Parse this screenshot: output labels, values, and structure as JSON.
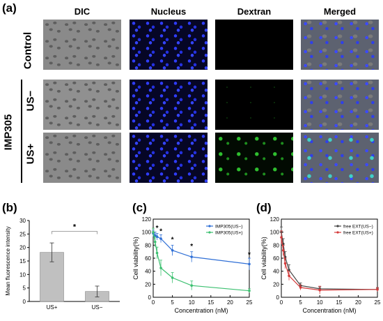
{
  "panel_a": {
    "label": "(a)",
    "columns": [
      "DIC",
      "Nucleus",
      "Dextran",
      "Merged"
    ],
    "rows": [
      "Control",
      "US−",
      "US+"
    ],
    "group_label": "IMP305"
  },
  "panel_b": {
    "label": "(b)"
  },
  "panel_c": {
    "label": "(c)"
  },
  "panel_d": {
    "label": "(d)"
  },
  "chart_data": [
    {
      "id": "b",
      "type": "bar",
      "categories": [
        "US+",
        "US−"
      ],
      "values": [
        18.2,
        3.7
      ],
      "errors": [
        3.5,
        2.0
      ],
      "ylabel": "Mean fluorescence intensity",
      "ylim": [
        0,
        30
      ],
      "yticks": [
        0,
        5,
        10,
        15,
        20,
        25,
        30
      ],
      "significance": "*",
      "color": "#c0c0c0"
    },
    {
      "id": "c",
      "type": "line",
      "xlabel": "Concentration (nM)",
      "ylabel": "Cell viability(%)",
      "xlim": [
        0,
        25
      ],
      "ylim": [
        0,
        120
      ],
      "xticks": [
        0,
        5,
        10,
        15,
        20,
        25
      ],
      "yticks": [
        0,
        20,
        40,
        60,
        80,
        100,
        120
      ],
      "legend_position": "top-right",
      "series": [
        {
          "name": "IMP305(US−)",
          "color": "#2f6fd6",
          "x": [
            0,
            0.5,
            1,
            2,
            5,
            10,
            25
          ],
          "y": [
            98,
            95,
            93,
            90,
            72,
            62,
            51
          ],
          "err": [
            5,
            5,
            5,
            6,
            8,
            8,
            9
          ]
        },
        {
          "name": "IMP305(US+)",
          "color": "#3cc070",
          "x": [
            0,
            0.5,
            1,
            2,
            5,
            10,
            25
          ],
          "y": [
            100,
            85,
            68,
            45,
            30,
            18,
            10
          ],
          "err": [
            6,
            8,
            9,
            12,
            8,
            7,
            3
          ]
        }
      ],
      "stars": [
        {
          "x": 1,
          "y": 103
        },
        {
          "x": 2,
          "y": 98
        },
        {
          "x": 5,
          "y": 85
        },
        {
          "x": 10,
          "y": 75
        },
        {
          "x": 25,
          "y": 62
        }
      ]
    },
    {
      "id": "d",
      "type": "line",
      "xlabel": "Concentration (nM)",
      "ylabel": "Cell viability(%)",
      "xlim": [
        0,
        25
      ],
      "ylim": [
        0,
        120
      ],
      "xticks": [
        0,
        5,
        10,
        15,
        20,
        25
      ],
      "yticks": [
        0,
        20,
        40,
        60,
        80,
        100,
        120
      ],
      "legend_position": "top-right",
      "series": [
        {
          "name": "free EXT(US−)",
          "color": "#444444",
          "x": [
            0,
            0.5,
            1,
            2,
            5,
            10,
            25
          ],
          "y": [
            100,
            82,
            62,
            42,
            18,
            13,
            12
          ],
          "err": [
            8,
            8,
            8,
            8,
            4,
            3,
            2
          ]
        },
        {
          "name": "free EXT(US+)",
          "color": "#d43b3b",
          "x": [
            0,
            0.5,
            1,
            2,
            5,
            10,
            25
          ],
          "y": [
            92,
            72,
            52,
            33,
            15,
            11,
            12
          ],
          "err": [
            10,
            8,
            8,
            7,
            4,
            6,
            3
          ]
        }
      ]
    }
  ]
}
